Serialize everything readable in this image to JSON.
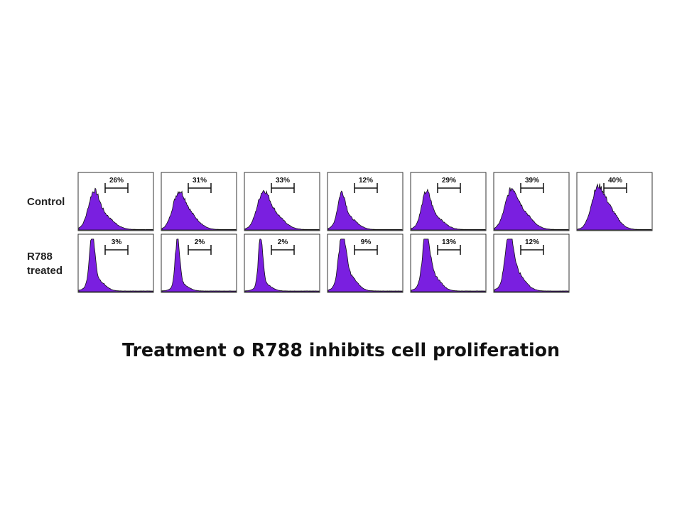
{
  "rows": [
    {
      "label": [
        "Control"
      ],
      "gates": [
        "26%",
        "31%",
        "33%",
        "12%",
        "29%",
        "39%",
        "40%"
      ]
    },
    {
      "label": [
        "R788",
        "treated"
      ],
      "gates": [
        "3%",
        "2%",
        "2%",
        "9%",
        "13%",
        "12%"
      ]
    }
  ],
  "caption": "Treatment o R788 inhibits cell proliferation"
}
